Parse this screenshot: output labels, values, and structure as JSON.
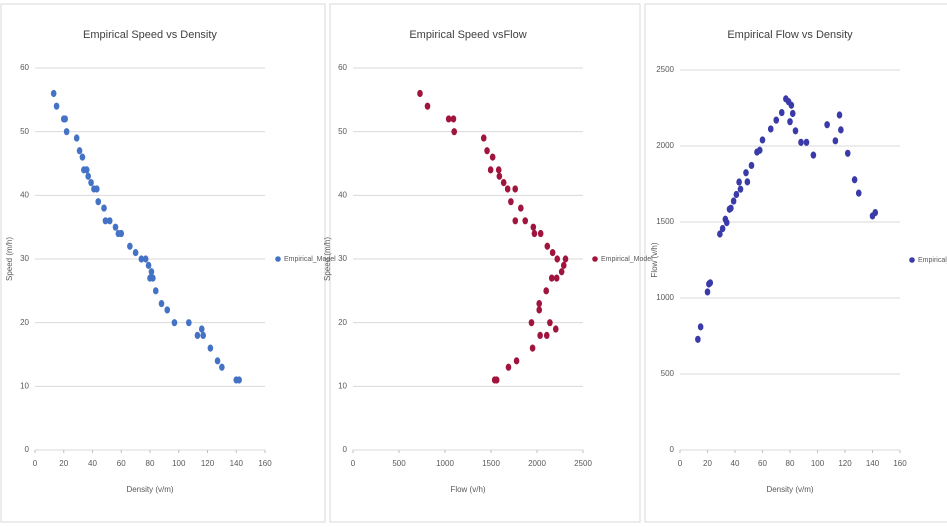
{
  "chart_data": [
    {
      "type": "scatter",
      "title": "Empirical Speed vs Density",
      "x_label": "Density (v/m)",
      "y_label": "Speed (m/h)",
      "x": [
        13,
        15,
        20,
        21,
        22,
        29,
        31,
        33,
        34,
        36,
        37,
        39,
        41,
        43,
        44,
        48,
        49,
        52,
        56,
        58,
        60,
        66,
        70,
        74,
        77,
        79,
        80,
        82,
        81,
        84,
        88,
        92,
        97,
        107,
        113,
        116,
        117,
        122,
        127,
        130,
        140,
        142
      ],
      "series": [
        {
          "name": "Empirical_Model",
          "color": "#4472c4",
          "values": [
            56,
            54,
            52,
            52,
            50,
            49,
            47,
            46,
            44,
            44,
            43,
            42,
            41,
            41,
            39,
            38,
            36,
            36,
            35,
            34,
            34,
            32,
            31,
            30,
            30,
            29,
            27,
            27,
            28,
            25,
            23,
            22,
            20,
            20,
            18,
            19,
            18,
            16,
            14,
            13,
            11,
            11
          ]
        }
      ],
      "xlim": [
        0,
        160
      ],
      "xticks": [
        0,
        20,
        40,
        60,
        80,
        100,
        120,
        140,
        160
      ],
      "ylim": [
        0,
        60
      ],
      "yticks": [
        0,
        10,
        20,
        30,
        40,
        50,
        60
      ],
      "grid": true,
      "legend": "right"
    },
    {
      "type": "scatter",
      "title": "Empirical Speed vsFlow",
      "x_label": "Flow (v/h)",
      "y_label": "Speed (m/h)",
      "x": [
        728,
        810,
        1040,
        1092,
        1100,
        1421,
        1457,
        1518,
        1496,
        1584,
        1591,
        1638,
        1681,
        1763,
        1716,
        1824,
        1764,
        1872,
        1960,
        1972,
        2040,
        2112,
        2170,
        2220,
        2310,
        2291,
        2160,
        2214,
        2268,
        2100,
        2024,
        2024,
        1940,
        2140,
        2034,
        2204,
        2106,
        1952,
        1778,
        1690,
        1540,
        1562
      ],
      "series": [
        {
          "name": "Empirical_Model",
          "color": "#a0153e",
          "values": [
            56,
            54,
            52,
            52,
            50,
            49,
            47,
            46,
            44,
            44,
            43,
            42,
            41,
            41,
            39,
            38,
            36,
            36,
            35,
            34,
            34,
            32,
            31,
            30,
            30,
            29,
            27,
            27,
            28,
            25,
            23,
            22,
            20,
            20,
            18,
            19,
            18,
            16,
            14,
            13,
            11,
            11
          ]
        }
      ],
      "xlim": [
        0,
        2500
      ],
      "xticks": [
        0,
        500,
        1000,
        1500,
        2000,
        2500
      ],
      "ylim": [
        0,
        60
      ],
      "yticks": [
        0,
        10,
        20,
        30,
        40,
        50,
        60
      ],
      "grid": true,
      "legend": "right"
    },
    {
      "type": "scatter",
      "title": "Empirical Flow vs Density",
      "x_label": "Density (v/m)",
      "y_label": "Flow (v/h)",
      "x": [
        13,
        15,
        20,
        21,
        22,
        29,
        31,
        33,
        34,
        36,
        37,
        39,
        41,
        43,
        44,
        48,
        49,
        52,
        56,
        58,
        60,
        66,
        70,
        74,
        77,
        79,
        80,
        82,
        81,
        84,
        88,
        92,
        97,
        107,
        113,
        116,
        117,
        122,
        127,
        130,
        140,
        142
      ],
      "series": [
        {
          "name": "Empirical_Model",
          "color": "#3a3aa8",
          "values": [
            728,
            810,
            1040,
            1092,
            1100,
            1421,
            1457,
            1518,
            1496,
            1584,
            1591,
            1638,
            1681,
            1763,
            1716,
            1824,
            1764,
            1872,
            1960,
            1972,
            2040,
            2112,
            2170,
            2220,
            2310,
            2291,
            2160,
            2214,
            2268,
            2100,
            2024,
            2024,
            1940,
            2140,
            2034,
            2204,
            2106,
            1952,
            1778,
            1690,
            1540,
            1562
          ]
        }
      ],
      "xlim": [
        0,
        160
      ],
      "xticks": [
        0,
        20,
        40,
        60,
        80,
        100,
        120,
        140,
        160
      ],
      "ylim": [
        0,
        2500
      ],
      "yticks": [
        0,
        500,
        1000,
        1500,
        2000,
        2500
      ],
      "grid": true,
      "legend": "right"
    }
  ]
}
